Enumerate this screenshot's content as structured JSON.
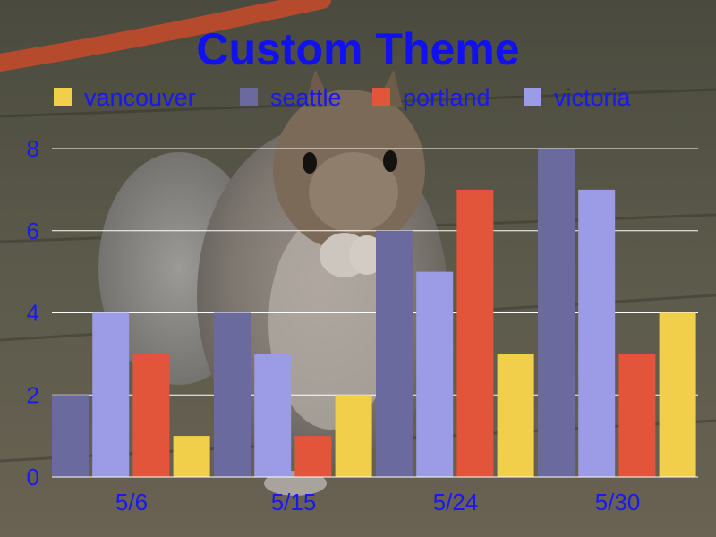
{
  "chart_data": {
    "type": "bar",
    "title": "Custom Theme",
    "categories": [
      "5/6",
      "5/15",
      "5/24",
      "5/30"
    ],
    "series": [
      {
        "name": "vancouver",
        "color": "#f2cf4a",
        "values": [
          1,
          2,
          3,
          4
        ]
      },
      {
        "name": "seattle",
        "color": "#6a6a9e",
        "values": [
          2,
          4,
          6,
          8
        ]
      },
      {
        "name": "portland",
        "color": "#e2553b",
        "values": [
          3,
          1,
          7,
          3
        ]
      },
      {
        "name": "victoria",
        "color": "#9b9be6",
        "values": [
          4,
          3,
          5,
          7
        ]
      }
    ],
    "bar_order": [
      [
        "seattle",
        "victoria",
        "portland",
        "vancouver"
      ],
      [
        "seattle",
        "victoria",
        "portland",
        "vancouver"
      ],
      [
        "seattle",
        "victoria",
        "portland",
        "vancouver"
      ],
      [
        "seattle",
        "victoria",
        "portland",
        "vancouver"
      ]
    ],
    "ylim": [
      0,
      8
    ],
    "yticks": [
      0,
      2,
      4,
      6,
      8
    ],
    "grid": true,
    "legend_position": "top",
    "xlabel": "",
    "ylabel": ""
  },
  "background": {
    "subject": "squirrel-photo"
  }
}
